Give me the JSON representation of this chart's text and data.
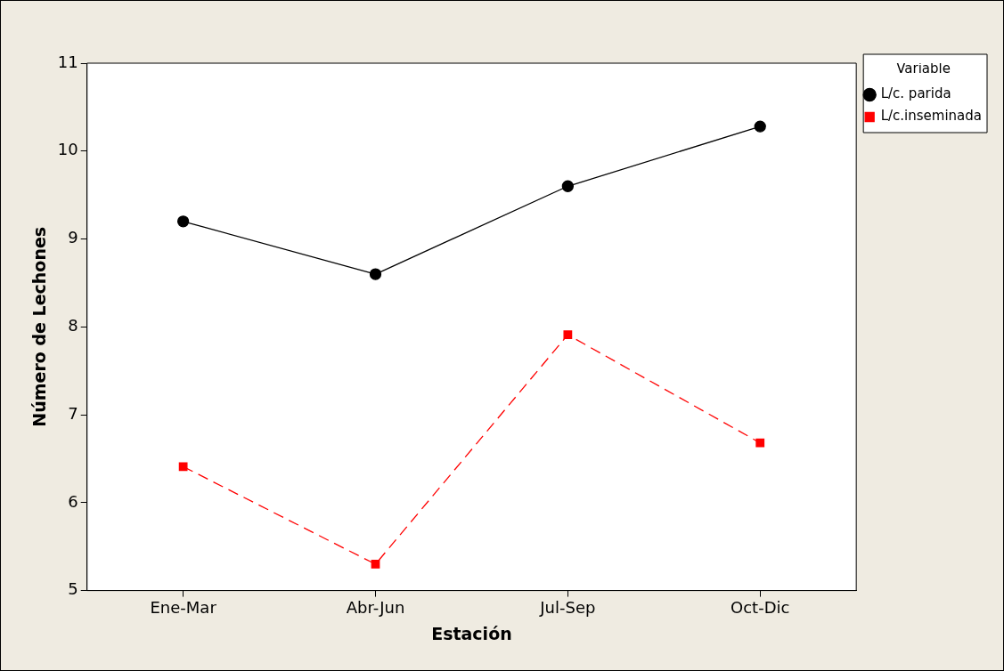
{
  "chart_data": {
    "type": "line",
    "xlabel": "Estación",
    "ylabel": "Número de Lechones",
    "legend_title": "Variable",
    "legend": "top right",
    "grid": false,
    "categories": [
      "Ene-Mar",
      "Abr-Jun",
      "Jul-Sep",
      "Oct-Dic"
    ],
    "ylim": [
      5,
      11
    ],
    "yticks": [
      5,
      6,
      7,
      8,
      9,
      10,
      11
    ],
    "series": [
      {
        "name": "L/c. parida",
        "color": "#000000",
        "marker": "circle",
        "line_style": "solid",
        "values": [
          9.2,
          8.6,
          9.6,
          10.28
        ]
      },
      {
        "name": "L/c.inseminada",
        "color": "#ff0000",
        "marker": "square",
        "line_style": "dashed",
        "values": [
          6.41,
          5.3,
          7.91,
          6.68
        ]
      }
    ]
  }
}
